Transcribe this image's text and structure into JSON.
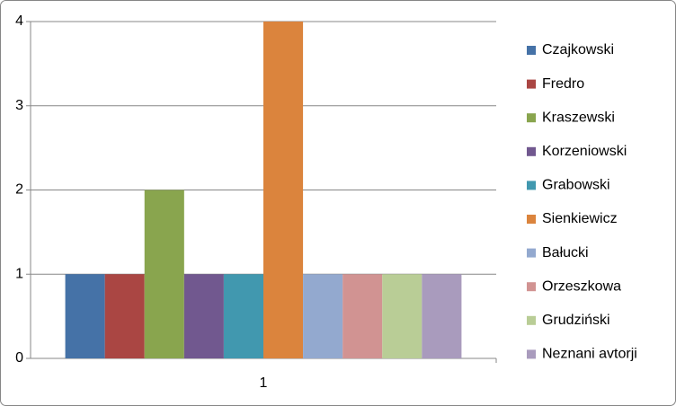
{
  "chart_data": {
    "type": "bar",
    "categories": [
      "1"
    ],
    "series": [
      {
        "name": "Czajkowski",
        "color": "#4572a7",
        "values": [
          1
        ]
      },
      {
        "name": "Fredro",
        "color": "#aa4643",
        "values": [
          1
        ]
      },
      {
        "name": "Kraszewski",
        "color": "#89a54e",
        "values": [
          2
        ]
      },
      {
        "name": "Korzeniowski",
        "color": "#71588f",
        "values": [
          1
        ]
      },
      {
        "name": "Grabowski",
        "color": "#4198af",
        "values": [
          1
        ]
      },
      {
        "name": "Sienkiewicz",
        "color": "#db843d",
        "values": [
          4
        ]
      },
      {
        "name": "Bałucki",
        "color": "#93a9cf",
        "values": [
          1
        ]
      },
      {
        "name": "Orzeszkowa",
        "color": "#d19392",
        "values": [
          1
        ]
      },
      {
        "name": "Grudziński",
        "color": "#b9cd96",
        "values": [
          1
        ]
      },
      {
        "name": "Neznani avtorji",
        "color": "#a99bbd",
        "values": [
          1
        ]
      }
    ],
    "ylim": [
      0,
      4
    ],
    "yticks": [
      0,
      1,
      2,
      3,
      4
    ],
    "grid": true,
    "legend": "right"
  }
}
